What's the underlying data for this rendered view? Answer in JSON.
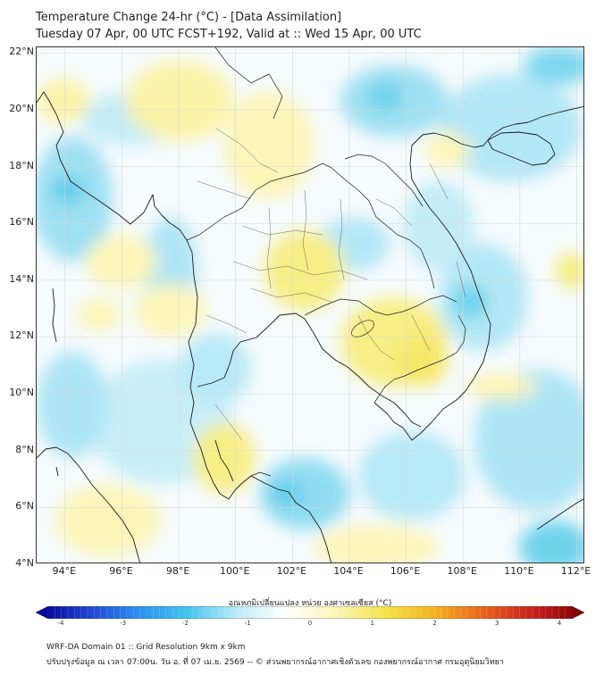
{
  "header": {
    "title_line1": "Temperature Change 24-hr (°C) - [Data Assimilation]",
    "title_line2": "Tuesday 07 Apr, 00 UTC FCST+192, Valid at :: Wed 15 Apr, 00 UTC"
  },
  "map": {
    "lat_labels": [
      "22°N",
      "20°N",
      "18°N",
      "16°N",
      "14°N",
      "12°N",
      "10°N",
      "8°N",
      "6°N",
      "4°N"
    ],
    "lon_labels": [
      "94°E",
      "96°E",
      "98°E",
      "100°E",
      "102°E",
      "104°E",
      "106°E",
      "108°E",
      "110°E",
      "112°E"
    ],
    "lat_range": [
      4,
      22.2
    ],
    "lon_range": [
      93,
      112.3
    ],
    "field": "24-hr temperature change",
    "colors": {
      "background": "#f6fbfd",
      "warm_light": "#fbf4b0",
      "warm": "#f7ee86",
      "cool_light": "#bfe9f6",
      "cool": "#8fdcf2",
      "cool_strong": "#5fcde9",
      "coastline": "#1a1a1a",
      "grid": "#d8d8d8"
    }
  },
  "colorbar": {
    "title": "อุณหภูมิเปลี่ยนแปลง หน่วย องศาเซลเซียส (°C)",
    "min": -4,
    "max": 4,
    "ticks": [
      "-4",
      "-3",
      "-2",
      "-1",
      "0",
      "1",
      "2",
      "3",
      "4"
    ],
    "colors": [
      "#00008b",
      "#1f3fd0",
      "#2a8cf0",
      "#3fc3ee",
      "#b8ecf8",
      "#ffffff",
      "#fbf5b8",
      "#f5e34a",
      "#f5b21f",
      "#e8601c",
      "#c81e1e",
      "#7a0000"
    ]
  },
  "footer": {
    "line1": "WRF-DA Domain 01 :: Grid Resolution 9km x 9km",
    "line2": "ปรับปรุงข้อมูล ณ เวลา 07:00น. วัน อ. ที่ 07 เม.ย. 2569 -- © ส่วนพยากรณ์อากาศเชิงตัวเลข กองพยากรณ์อากาศ กรมอุตุนิยมวิทยา"
  }
}
